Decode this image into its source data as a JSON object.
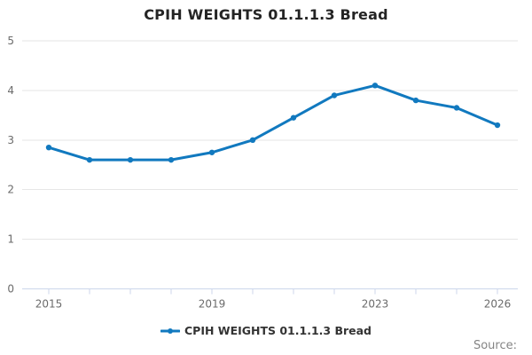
{
  "chart_data": {
    "type": "line",
    "title": "CPIH WEIGHTS 01.1.1.3 Bread",
    "x": [
      2015,
      2016,
      2017,
      2018,
      2019,
      2020,
      2021,
      2022,
      2023,
      2024,
      2025,
      2026
    ],
    "series": [
      {
        "name": "CPIH WEIGHTS 01.1.1.3 Bread",
        "values": [
          2.85,
          2.6,
          2.6,
          2.6,
          2.75,
          3.0,
          3.45,
          3.9,
          4.1,
          3.8,
          3.65,
          3.3
        ],
        "color": "#1179bf",
        "marker": "circle"
      }
    ],
    "xlabel": "",
    "ylabel": "",
    "ylim": [
      0,
      5
    ],
    "yticks": [
      0,
      1,
      2,
      3,
      4,
      5
    ],
    "xtick_labels": [
      2015,
      2019,
      2023,
      2026
    ],
    "grid": true,
    "legend_position": "bottom"
  },
  "legend": {
    "label": "CPIH WEIGHTS 01.1.1.3 Bread"
  },
  "footer": {
    "source_label": "Source:"
  },
  "colors": {
    "line": "#1179bf",
    "gridline": "#e6e6e6",
    "axis_line": "#ccd6eb",
    "tick_text": "#6b6b6b",
    "title_text": "#242424",
    "legend_text": "#333333",
    "source_text": "#848484",
    "background": "#ffffff"
  }
}
